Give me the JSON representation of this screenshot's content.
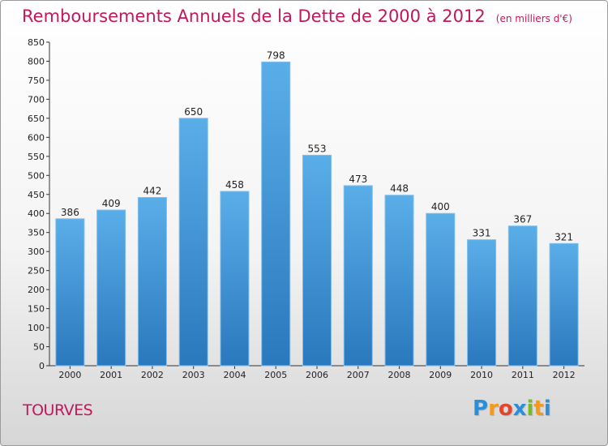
{
  "chart_data": {
    "type": "bar",
    "title": "Remboursements Annuels de la Dette de 2000 à 2012",
    "unit": "(en milliers d'€)",
    "categories": [
      "2000",
      "2001",
      "2002",
      "2003",
      "2004",
      "2005",
      "2006",
      "2007",
      "2008",
      "2009",
      "2010",
      "2011",
      "2012"
    ],
    "values": [
      386,
      409,
      442,
      650,
      458,
      798,
      553,
      473,
      448,
      400,
      331,
      367,
      321
    ],
    "ylim": [
      0,
      850
    ],
    "ytick_step": 50,
    "grid": false,
    "bar_color": "#3f95d6",
    "xlabel": "",
    "ylabel": ""
  },
  "location": "TOURVES",
  "logo": {
    "letters": [
      "P",
      "r",
      "o",
      "x",
      "i",
      "t",
      "i"
    ],
    "colors": [
      "#2a8fd8",
      "#f39a1c",
      "#e2452b",
      "#2a8fd8",
      "#79b829",
      "#f39a1c",
      "#2a8fd8"
    ]
  }
}
